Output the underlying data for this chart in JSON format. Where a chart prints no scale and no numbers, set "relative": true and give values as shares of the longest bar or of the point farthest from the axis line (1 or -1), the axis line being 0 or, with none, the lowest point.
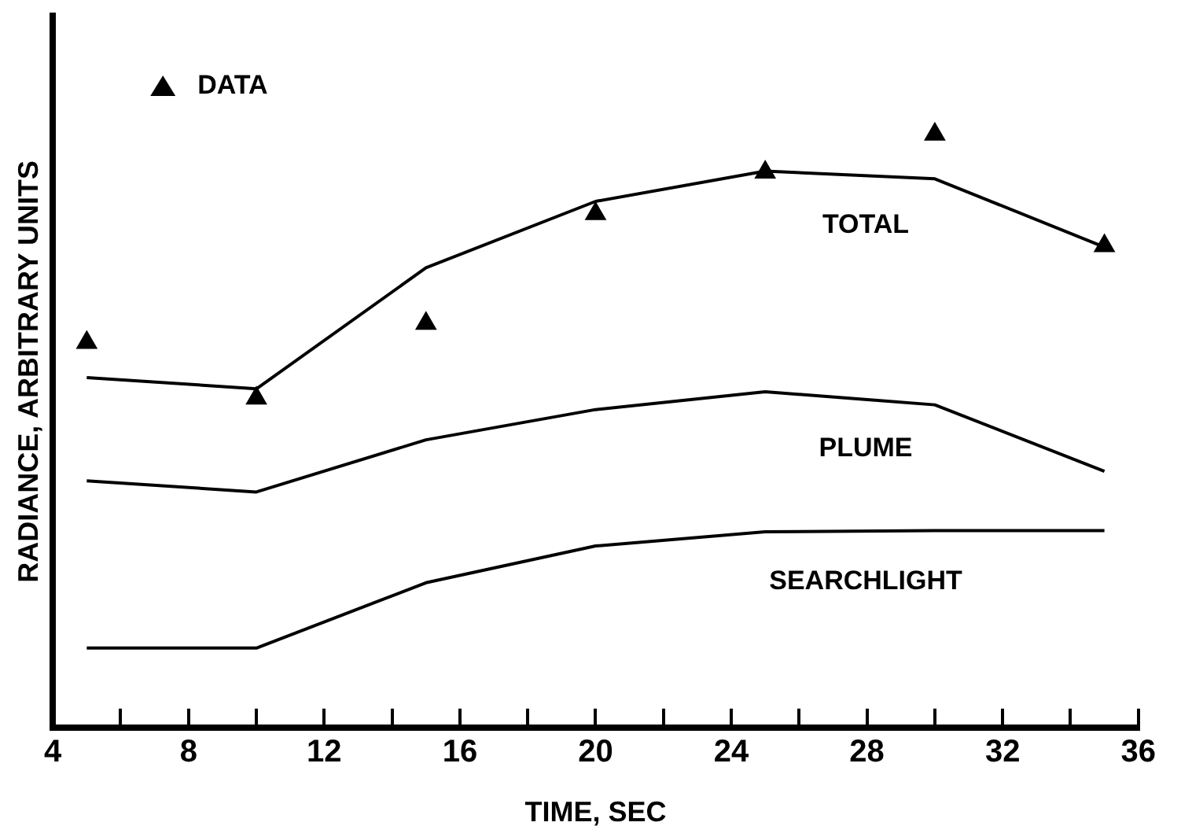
{
  "chart_data": {
    "type": "line",
    "relative": true,
    "xlabel": "TIME, SEC",
    "ylabel": "RADIANCE, ARBITRARY UNITS",
    "xlim": [
      4,
      36
    ],
    "xticks": [
      4,
      {
        "value": 6,
        "label": null
      },
      8,
      {
        "value": 10,
        "label": null
      },
      12,
      {
        "value": 14,
        "label": null
      },
      16,
      {
        "value": 18,
        "label": null
      },
      20,
      {
        "value": 22,
        "label": null
      },
      24,
      {
        "value": 26,
        "label": null
      },
      28,
      {
        "value": 30,
        "label": null
      },
      32,
      {
        "value": 34,
        "label": null
      },
      36
    ],
    "x": [
      5,
      10,
      15,
      20,
      25,
      30,
      35
    ],
    "grid": false,
    "legend": "top left",
    "line_style": "solid",
    "series": [
      {
        "name": "TOTAL",
        "marker": "none",
        "color": "#000000",
        "values": [
          0.59,
          0.571,
          0.775,
          0.887,
          0.938,
          0.925,
          0.81
        ]
      },
      {
        "name": "PLUME",
        "marker": "none",
        "color": "#000000",
        "values": [
          0.416,
          0.397,
          0.485,
          0.536,
          0.566,
          0.544,
          0.432
        ]
      },
      {
        "name": "SEARCHLIGHT",
        "marker": "none",
        "color": "#000000",
        "values": [
          0.134,
          0.134,
          0.244,
          0.306,
          0.33,
          0.332,
          0.332
        ]
      },
      {
        "name": "DATA",
        "type": "scatter",
        "marker": "triangle",
        "color": "#000000",
        "values": [
          0.649,
          0.555,
          0.681,
          0.866,
          0.936,
          1,
          0.812
        ]
      }
    ]
  }
}
